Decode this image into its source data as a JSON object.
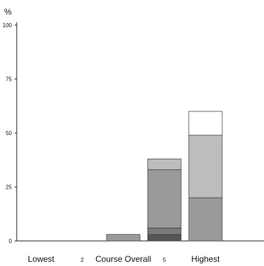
{
  "chart_data": {
    "type": "bar",
    "stacked": true,
    "ylabel": "%",
    "ylim": [
      0,
      100
    ],
    "yticks": [
      0,
      25,
      50,
      75,
      100
    ],
    "grid": false,
    "categories": [
      "Lowest",
      "2",
      "Course Overall",
      "5",
      "Highest"
    ],
    "series": [
      {
        "values": [
          0,
          0,
          0,
          3,
          0
        ],
        "color": "#555555"
      },
      {
        "values": [
          0,
          0,
          0,
          3,
          0
        ],
        "color": "#7a7a7a"
      },
      {
        "values": [
          0,
          0,
          3,
          27,
          20
        ],
        "color": "#9a9a9a"
      },
      {
        "values": [
          0,
          0,
          0,
          5,
          29
        ],
        "color": "#bdbdbd"
      },
      {
        "values": [
          0,
          0,
          0,
          0,
          11
        ],
        "color": "#ffffff"
      }
    ]
  }
}
